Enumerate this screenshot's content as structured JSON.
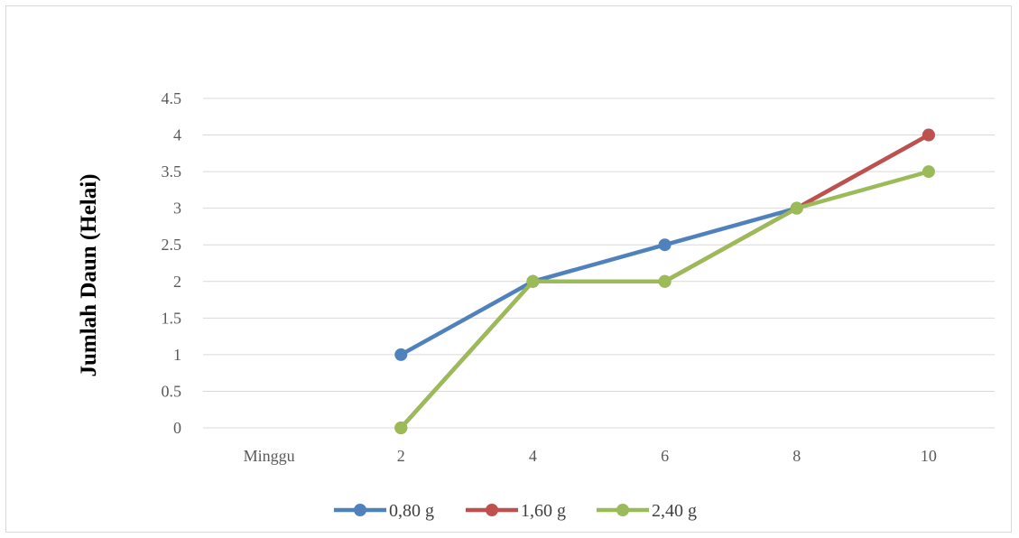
{
  "chart_data": {
    "type": "line",
    "categories": [
      "Minggu",
      "2",
      "4",
      "6",
      "8",
      "10"
    ],
    "series": [
      {
        "name": "0,80 g",
        "color": "#4f81bd",
        "values": [
          null,
          1,
          2,
          2.5,
          3,
          4
        ]
      },
      {
        "name": "1,60 g",
        "color": "#c0504d",
        "values": [
          null,
          0,
          2,
          2,
          3,
          4
        ]
      },
      {
        "name": "2,40 g",
        "color": "#9bbb59",
        "values": [
          null,
          0,
          2,
          2,
          3,
          3.5
        ]
      }
    ],
    "y_ticks": [
      "0",
      "0.5",
      "1",
      "1.5",
      "2",
      "2.5",
      "3",
      "3.5",
      "4",
      "4.5"
    ],
    "ylim": [
      0,
      4.5
    ],
    "ylabel": "Jumlah Daun (Helai)",
    "xlabel": "",
    "grid": true,
    "legend": "bottom"
  }
}
